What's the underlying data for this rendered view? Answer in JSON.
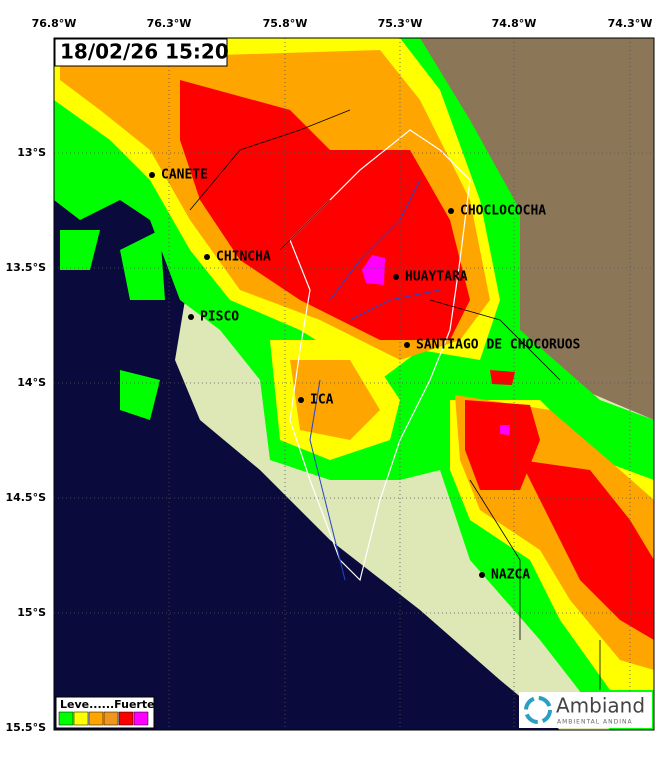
{
  "timestamp": "18/02/26 15:20",
  "lon_labels": [
    "76.8°W",
    "76.3°W",
    "75.8°W",
    "75.3°W",
    "74.8°W",
    "74.3°W"
  ],
  "lat_labels": [
    "13°S",
    "13.5°S",
    "14°S",
    "14.5°S",
    "15°S",
    "15.5°S"
  ],
  "cities": [
    "CANETE",
    "CHINCHA",
    "PISCO",
    "CHOCLOCOCHA",
    "HUAYTARA",
    "SANTIAGO DE CHOCORUOS",
    "ICA",
    "NAZCA"
  ],
  "legend": {
    "label": "Leve......Fuerte",
    "colors": [
      "#00ff00",
      "#ffff00",
      "#ffa500",
      "#f0961e",
      "#ff0000",
      "#ff00ff"
    ]
  },
  "logo": {
    "name": "Ambiand",
    "tagline": "AMBIENTAL ANDINA"
  }
}
